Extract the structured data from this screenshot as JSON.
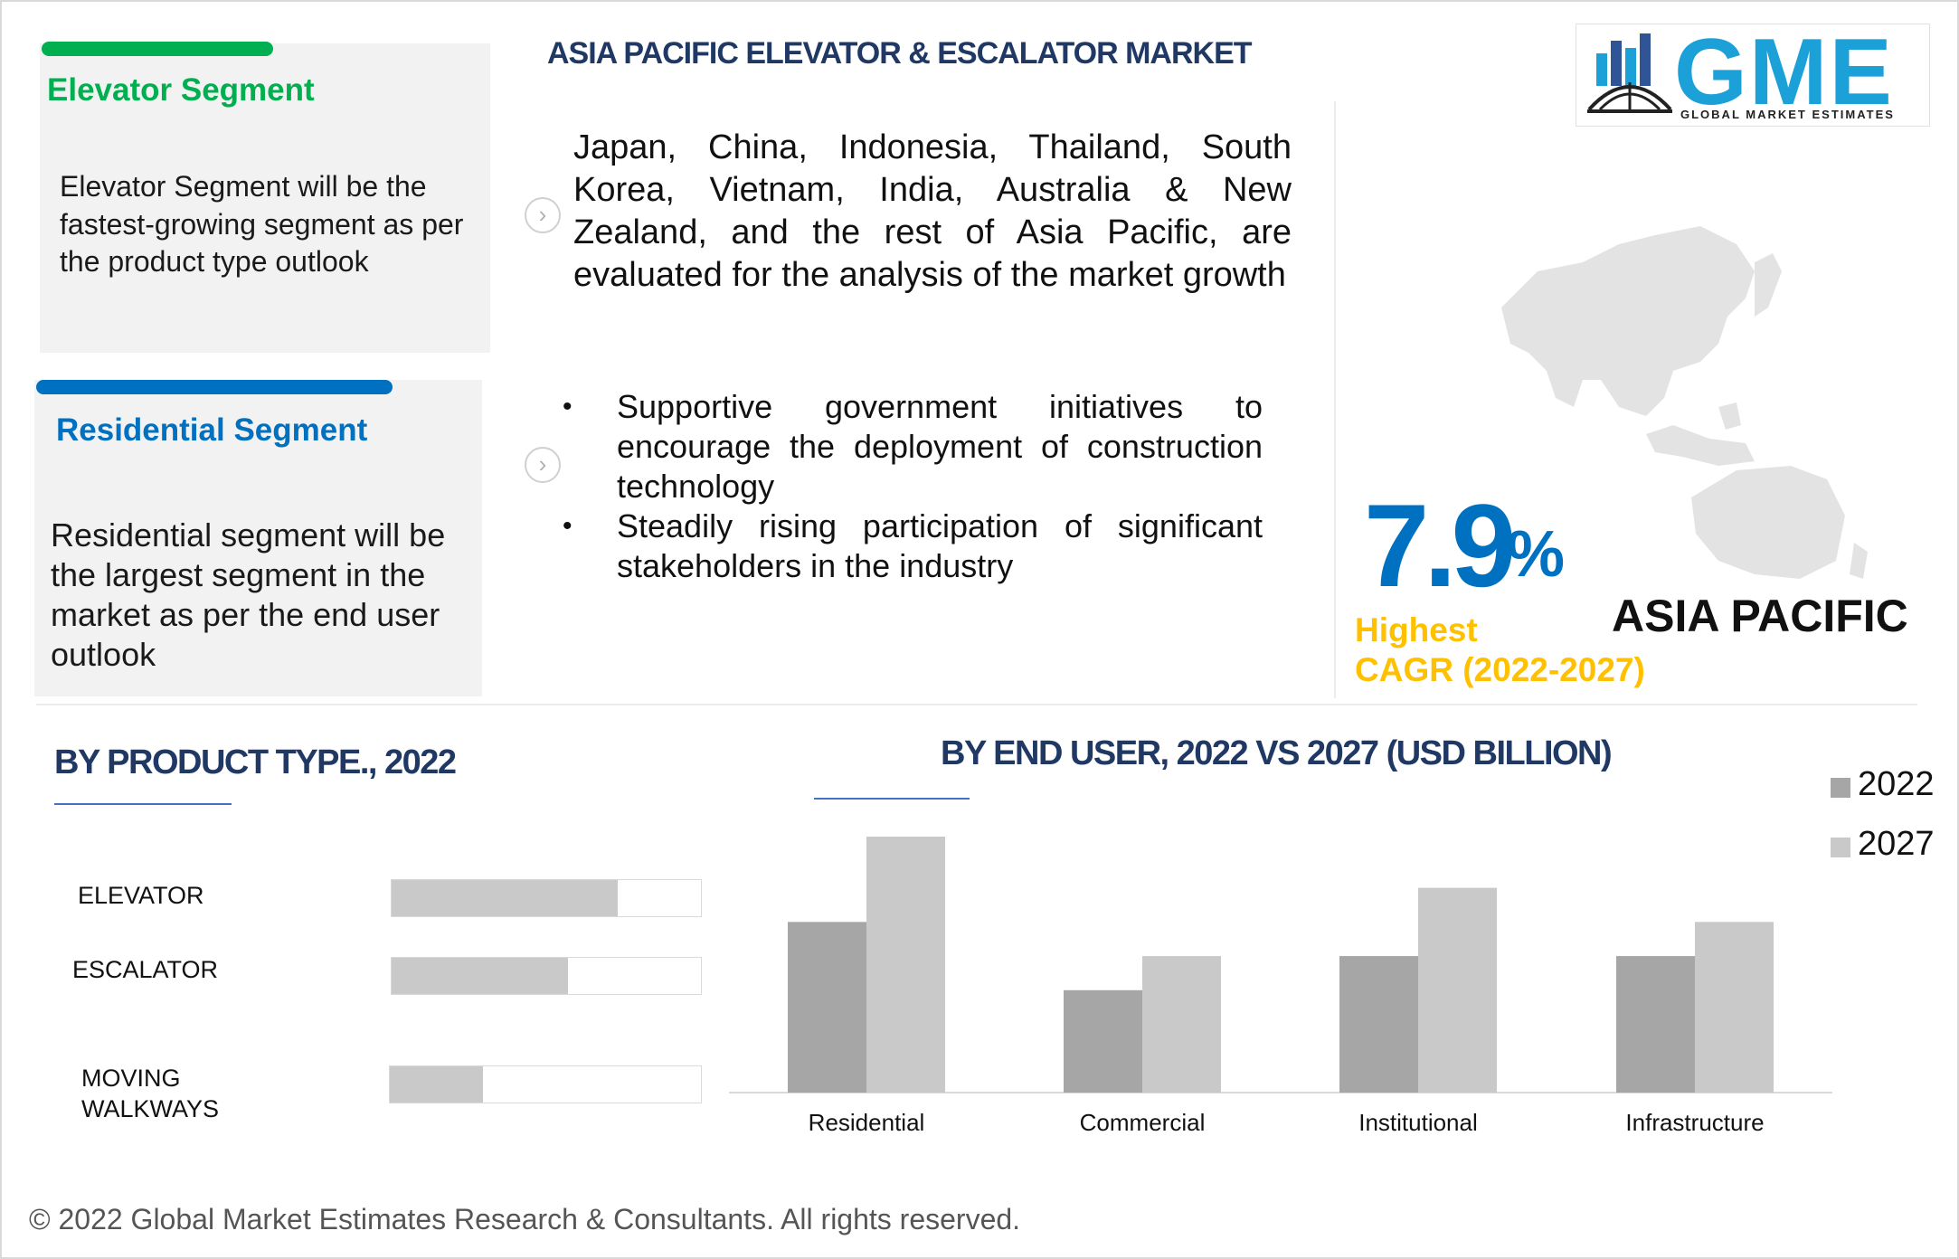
{
  "header": {
    "title": "ASIA PACIFIC ELEVATOR & ESCALATOR MARKET"
  },
  "logo": {
    "text": "GME",
    "subtitle": "GLOBAL MARKET ESTIMATES"
  },
  "cards": [
    {
      "title": "Elevator Segment",
      "text": "Elevator Segment will be the fastest-growing segment as per the product type outlook",
      "color": "#00b050"
    },
    {
      "title": "Residential Segment",
      "text": "Residential segment will be the largest segment in the market as per the end user outlook",
      "color": "#0070c0"
    }
  ],
  "center": {
    "paragraph": "Japan, China, Indonesia, Thailand, South Korea, Vietnam, India, Australia & New Zealand, and the rest of Asia Pacific, are evaluated for the analysis of the market growth",
    "bullets": [
      "Supportive government initiatives to encourage the deployment of construction technology",
      "Steadily rising participation of significant stakeholders in the industry"
    ],
    "bullet_char": "•"
  },
  "cagr": {
    "value": "7.9",
    "unit": "%",
    "label1": "Highest",
    "label2": "CAGR (2022-2027)",
    "region": "ASIA PACIFIC"
  },
  "product_section": {
    "title": "BY PRODUCT TYPE., 2022"
  },
  "enduser_section": {
    "title": "BY END USER, 2022 VS 2027 (USD BILLION)"
  },
  "footer": "© 2022 Global Market Estimates Research & Consultants. All rights reserved.",
  "colors": {
    "s2022": "#a6a6a6",
    "s2027": "#c9c9c9",
    "navy": "#1f3864",
    "blue": "#0070c0",
    "green": "#00b050",
    "gold": "#ffc000"
  },
  "chart_data": [
    {
      "type": "bar",
      "orientation": "horizontal",
      "title": "BY PRODUCT TYPE., 2022",
      "categories": [
        "ELEVATOR",
        "ESCALATOR",
        "MOVING WALKWAYS"
      ],
      "values_fraction": [
        0.73,
        0.57,
        0.3
      ],
      "grid": false
    },
    {
      "type": "bar",
      "title": "BY END USER, 2022 VS 2027 (USD BILLION)",
      "categories": [
        "Residential",
        "Commercial",
        "Institutional",
        "Infrastructure"
      ],
      "series": [
        {
          "name": "2022",
          "values": [
            2.0,
            1.2,
            1.6,
            1.6
          ]
        },
        {
          "name": "2027",
          "values": [
            3.0,
            1.6,
            2.4,
            2.0
          ]
        }
      ],
      "ylim": [
        0,
        3.2
      ],
      "grid": false,
      "legend": "top-right"
    }
  ]
}
